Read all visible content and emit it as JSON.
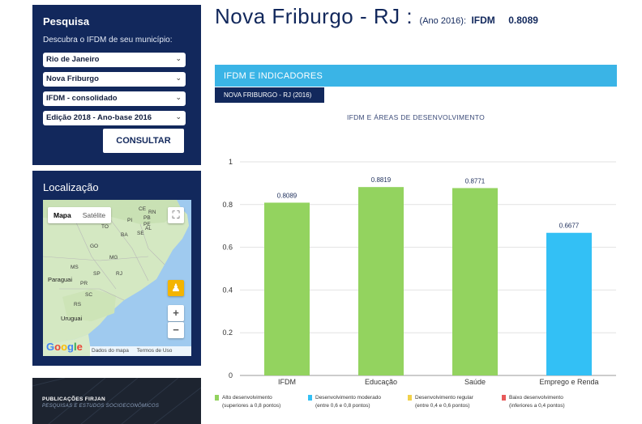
{
  "search": {
    "title": "Pesquisa",
    "description": "Descubra o IFDM de seu município:",
    "selects": [
      {
        "value": "Rio de Janeiro"
      },
      {
        "value": "Nova Friburgo"
      },
      {
        "value": "IFDM - consolidado"
      },
      {
        "value": "Edição 2018 - Ano-base 2016"
      }
    ],
    "button_label": "CONSULTAR"
  },
  "location": {
    "title": "Localização",
    "map_tabs": [
      "Mapa",
      "Satélite"
    ],
    "map_labels": [
      "CE",
      "RN",
      "PB",
      "PE",
      "AL",
      "SE",
      "BA",
      "TO",
      "GO",
      "MG",
      "MS",
      "SP",
      "RJ",
      "PR",
      "SC",
      "RS",
      "PI",
      "Paraguai",
      "Uruguai"
    ],
    "zoom_in": "+",
    "zoom_out": "−",
    "google_logo": "Google",
    "attribution_data": "Dados do mapa",
    "attribution_terms": "Termos de Uso"
  },
  "publication": {
    "title": "PUBLICAÇÕES FIRJAN",
    "subtitle": "PESQUISAS E ESTUDOS SOCIOECONÔMICOS"
  },
  "heading": {
    "city": "Nova Friburgo - RJ :",
    "year": "(Ano 2016):",
    "label": "IFDM",
    "value": "0.8089"
  },
  "indicators": {
    "bar_title": "IFDM E INDICADORES",
    "tab_label": "NOVA FRIBURGO - RJ (2016)"
  },
  "chart_data": {
    "type": "bar",
    "title": "IFDM E ÁREAS DE DESENVOLVIMENTO",
    "categories": [
      "IFDM",
      "Educação",
      "Saúde",
      "Emprego e Renda"
    ],
    "values": [
      0.8089,
      0.8819,
      0.8771,
      0.6677
    ],
    "value_labels": [
      "0.8089",
      "0.8819",
      "0.8771",
      "0.6677"
    ],
    "bar_colors": [
      "#93d35f",
      "#93d35f",
      "#93d35f",
      "#33c0f5"
    ],
    "ylim": [
      0,
      1
    ],
    "yticks": [
      "0",
      "0.2",
      "0.4",
      "0.6",
      "0.8",
      "1"
    ],
    "grid": true,
    "xlabel": "",
    "ylabel": ""
  },
  "legend": [
    {
      "line1": "Alto desenvolvimento",
      "line2": "(superiores a 0,8 pontos)",
      "color": "#93d35f"
    },
    {
      "line1": "Desenvolvimento moderado",
      "line2": "(entre 0,6 e 0,8 pontos)",
      "color": "#33c0f5"
    },
    {
      "line1": "Desenvolvimento regular",
      "line2": "(entre 0,4 e 0,6 pontos)",
      "color": "#f1d14a"
    },
    {
      "line1": "Baixo desenvolvimento",
      "line2": "(inferiores a 0,4 pontos)",
      "color": "#e85a5a"
    }
  ]
}
